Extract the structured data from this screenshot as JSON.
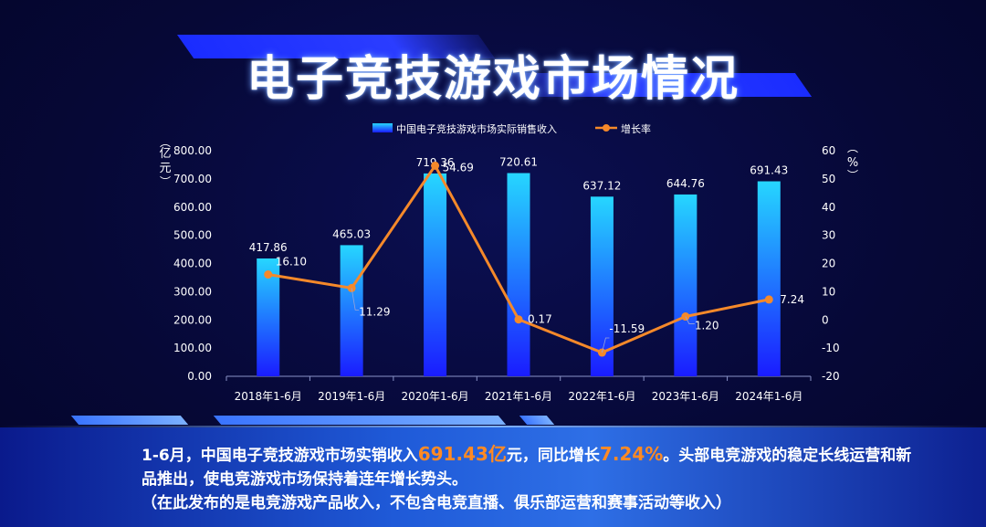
{
  "title": "电子竞技游戏市场情况",
  "legend": {
    "bar_label": "中国电子竞技游戏市场实际销售收入",
    "line_label": "增长率"
  },
  "axis": {
    "left_unit": "亿元",
    "right_unit": "%"
  },
  "summary": {
    "part1": "1-6月，中国电子竞技游戏市场实销收入",
    "value": "691.43亿",
    "part2": "元，同比增长",
    "rate": "7.24%",
    "part3": "。头部电竞游戏的稳定长线运营和新品推出，使电竞游戏市场保持着连年增长势头。",
    "note": "（在此发布的是电竞游戏产品收入，不包含电竞直播、俱乐部运营和赛事活动等收入）"
  },
  "colors": {
    "bar_top": "#26d6ff",
    "bar_bottom": "#1a1cff",
    "line": "#f5892a",
    "highlight": "#ff8a24"
  },
  "chart_data": {
    "type": "bar",
    "categories": [
      "2018年1-6月",
      "2019年1-6月",
      "2020年1-6月",
      "2021年1-6月",
      "2022年1-6月",
      "2023年1-6月",
      "2024年1-6月"
    ],
    "series": [
      {
        "name": "中国电子竞技游戏市场实际销售收入",
        "type": "bar",
        "axis": "left",
        "values": [
          417.86,
          465.03,
          719.36,
          720.61,
          637.12,
          644.76,
          691.43
        ],
        "labels": [
          "417.86",
          "465.03",
          "719.36",
          "720.61",
          "637.12",
          "644.76",
          "691.43"
        ]
      },
      {
        "name": "增长率",
        "type": "line",
        "axis": "right",
        "values": [
          16.1,
          11.29,
          54.69,
          0.17,
          -11.59,
          1.2,
          7.24
        ],
        "labels": [
          "16.10",
          "11.29",
          "54.69",
          "0.17",
          "-11.59",
          "1.20",
          "7.24"
        ]
      }
    ],
    "y_left": {
      "min": 0,
      "max": 800,
      "ticks": [
        "0.00",
        "100.00",
        "200.00",
        "300.00",
        "400.00",
        "500.00",
        "600.00",
        "700.00",
        "800.00"
      ]
    },
    "y_right": {
      "min": -20,
      "max": 60,
      "ticks": [
        "-20",
        "-10",
        "0",
        "10",
        "20",
        "30",
        "40",
        "50",
        "60"
      ]
    },
    "legend_position": "top-center",
    "grid": false
  }
}
